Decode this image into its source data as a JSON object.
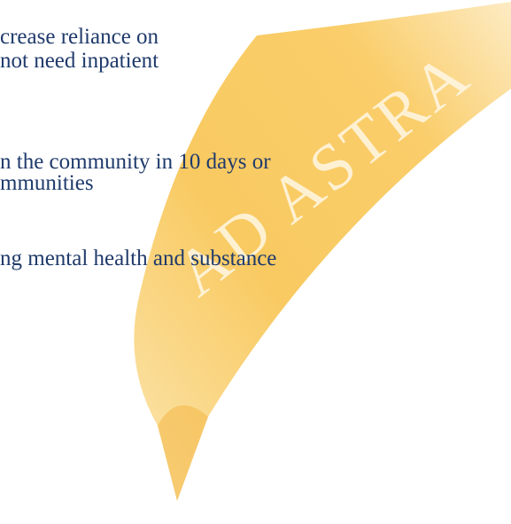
{
  "lines": [
    "crease reliance on",
    "not need inpatient",
    "n the community in 10 days or",
    "mmunities",
    "ng mental health and substance"
  ],
  "banner": {
    "text": "AD ASTRA"
  }
}
